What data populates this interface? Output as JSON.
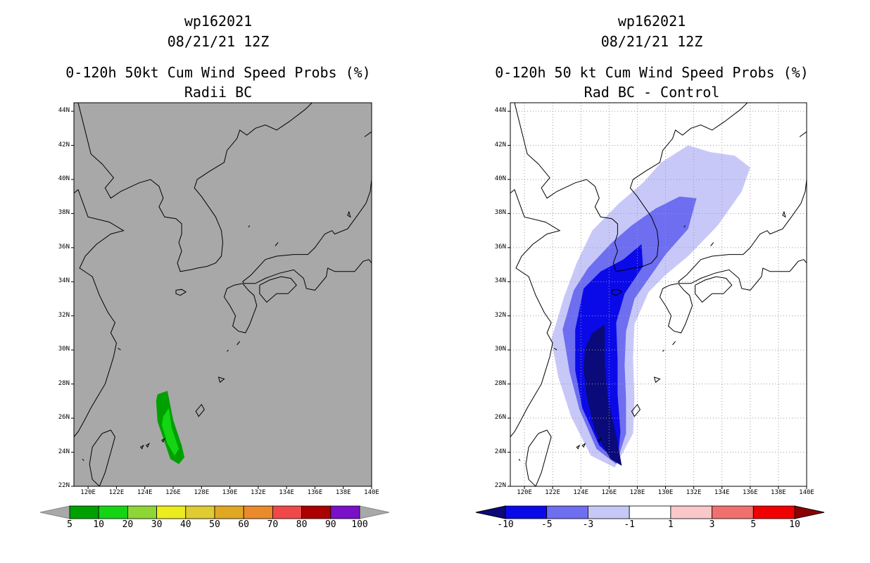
{
  "left_panel": {
    "storm_id": "wp162021",
    "datetime": "08/21/21 12Z",
    "title": "0-120h 50kt Cum Wind Speed Probs (%)",
    "subtitle": "Radii BC",
    "background_color": "#a8a8a8",
    "colorbar_labels": [
      "5",
      "10",
      "20",
      "30",
      "40",
      "50",
      "60",
      "70",
      "80",
      "90",
      "100"
    ],
    "colorbar_colors": [
      "#00a000",
      "#14d414",
      "#8ed636",
      "#ecec1e",
      "#e0cc32",
      "#e0a822",
      "#ea8a2a",
      "#f04848",
      "#aa0000",
      "#7a10c8"
    ]
  },
  "right_panel": {
    "storm_id": "wp162021",
    "datetime": "08/21/21 12Z",
    "title": "0-120h 50 kt Cum Wind Speed Probs (%)",
    "subtitle": "Rad BC - Control",
    "background_color": "#ffffff",
    "colorbar_labels": [
      "-10",
      "-5",
      "-3",
      "-1",
      "1",
      "3",
      "5",
      "10"
    ],
    "colorbar_colors": [
      "#0a0a7a",
      "#0a0ae8",
      "#6e6ef0",
      "#c8c8f8",
      "#ffffff",
      "#fac8c8",
      "#f07070",
      "#f00000",
      "#8c0000"
    ]
  },
  "map": {
    "lat_labels": [
      "44N",
      "42N",
      "40N",
      "38N",
      "36N",
      "34N",
      "32N",
      "30N",
      "28N",
      "26N",
      "24N",
      "22N"
    ],
    "lon_labels": [
      "120E",
      "122E",
      "124E",
      "126E",
      "128E",
      "130E",
      "132E",
      "134E",
      "136E",
      "138E",
      "140E"
    ]
  },
  "probability_fields": {
    "left": [
      {
        "level": "5",
        "color": "#00a000",
        "polygon": [
          [
            124.9,
            27.4
          ],
          [
            125.6,
            27.6
          ],
          [
            126.0,
            25.9
          ],
          [
            126.6,
            24.4
          ],
          [
            126.8,
            23.7
          ],
          [
            126.4,
            23.3
          ],
          [
            125.8,
            23.6
          ],
          [
            124.9,
            25.8
          ],
          [
            124.8,
            27.0
          ]
        ]
      },
      {
        "level": "10",
        "color": "#14d414",
        "polygon": [
          [
            125.3,
            26.1
          ],
          [
            125.7,
            26.6
          ],
          [
            125.9,
            25.4
          ],
          [
            126.4,
            24.2
          ],
          [
            126.1,
            23.8
          ],
          [
            125.6,
            24.5
          ],
          [
            125.2,
            25.6
          ]
        ]
      }
    ],
    "right": [
      {
        "level": "-1",
        "color": "#c8c8f8",
        "polygon": [
          [
            121.9,
            30.6
          ],
          [
            122.8,
            33.1
          ],
          [
            123.7,
            35.1
          ],
          [
            124.8,
            37.0
          ],
          [
            126.7,
            38.6
          ],
          [
            128.4,
            39.8
          ],
          [
            129.7,
            41.0
          ],
          [
            131.6,
            42.0
          ],
          [
            133.2,
            41.6
          ],
          [
            134.9,
            41.4
          ],
          [
            136.0,
            40.7
          ],
          [
            135.4,
            39.3
          ],
          [
            133.7,
            37.3
          ],
          [
            131.6,
            35.5
          ],
          [
            130.0,
            34.4
          ],
          [
            128.8,
            33.4
          ],
          [
            127.8,
            31.5
          ],
          [
            127.7,
            29.5
          ],
          [
            127.8,
            27.2
          ],
          [
            127.7,
            25.1
          ],
          [
            126.4,
            23.1
          ],
          [
            124.7,
            23.8
          ],
          [
            123.3,
            26.1
          ],
          [
            122.4,
            28.4
          ]
        ]
      },
      {
        "level": "-3",
        "color": "#6e6ef0",
        "polygon": [
          [
            122.7,
            31.2
          ],
          [
            123.5,
            33.5
          ],
          [
            124.5,
            34.8
          ],
          [
            126.2,
            36.3
          ],
          [
            127.6,
            37.3
          ],
          [
            129.3,
            38.3
          ],
          [
            131.0,
            39.0
          ],
          [
            132.2,
            38.9
          ],
          [
            131.6,
            37.1
          ],
          [
            130.0,
            35.6
          ],
          [
            128.9,
            34.3
          ],
          [
            127.8,
            33.0
          ],
          [
            127.2,
            31.1
          ],
          [
            127.1,
            29.1
          ],
          [
            127.2,
            27.1
          ],
          [
            127.2,
            25.1
          ],
          [
            126.5,
            23.3
          ],
          [
            125.1,
            24.2
          ],
          [
            123.9,
            26.5
          ],
          [
            123.2,
            28.7
          ]
        ]
      },
      {
        "level": "-5",
        "color": "#0a0ae8",
        "polygon": [
          [
            123.6,
            31.2
          ],
          [
            124.2,
            33.6
          ],
          [
            125.4,
            34.6
          ],
          [
            127.0,
            35.3
          ],
          [
            128.3,
            36.2
          ],
          [
            128.4,
            34.9
          ],
          [
            127.1,
            33.3
          ],
          [
            126.5,
            31.6
          ],
          [
            126.6,
            29.4
          ],
          [
            126.6,
            27.4
          ],
          [
            126.8,
            25.2
          ],
          [
            126.6,
            23.4
          ],
          [
            125.3,
            24.4
          ],
          [
            124.1,
            26.6
          ],
          [
            123.6,
            28.8
          ]
        ]
      },
      {
        "level": "-10",
        "color": "#0a0a7a",
        "polygon": [
          [
            124.3,
            30.1
          ],
          [
            124.8,
            31.0
          ],
          [
            125.7,
            31.5
          ],
          [
            125.7,
            29.4
          ],
          [
            125.9,
            27.2
          ],
          [
            126.5,
            25.0
          ],
          [
            126.9,
            23.2
          ],
          [
            126.1,
            23.6
          ],
          [
            125.0,
            25.2
          ],
          [
            124.4,
            27.3
          ],
          [
            124.2,
            28.9
          ]
        ]
      }
    ]
  }
}
